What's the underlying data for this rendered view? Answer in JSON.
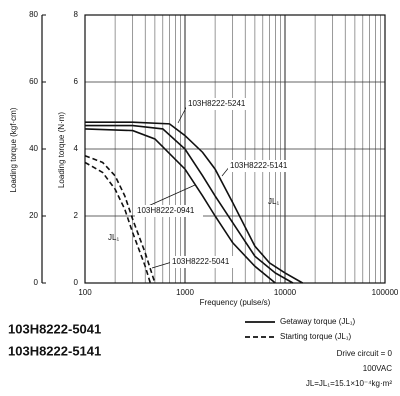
{
  "chart_data": {
    "type": "line",
    "titles": [
      "103H8222-5041",
      "103H8222-5141"
    ],
    "xlabel": "Frequency (pulse/s)",
    "ylabel": "Loading torque (N·m)",
    "y2label": "Loading torque (kgf·cm)",
    "xscale": "log",
    "xlim": [
      100,
      100000
    ],
    "xticks": [
      100,
      1000,
      10000,
      100000
    ],
    "xminorticks": [
      200,
      300,
      400,
      500,
      600,
      700,
      800,
      900,
      2000,
      3000,
      4000,
      5000,
      6000,
      7000,
      8000,
      9000,
      20000,
      30000,
      40000,
      50000,
      60000,
      70000,
      80000,
      90000
    ],
    "ylim": [
      0,
      8
    ],
    "yticks": [
      0,
      2,
      4,
      6,
      8
    ],
    "y2lim": [
      0,
      80
    ],
    "y2ticks": [
      0,
      20,
      40,
      60,
      80
    ],
    "grid": true,
    "color": "#111111",
    "series": [
      {
        "name": "103H8222-5241",
        "dashed": false,
        "x": [
          100,
          300,
          700,
          1000,
          1500,
          2000,
          3000,
          5000,
          7000,
          10000,
          15000
        ],
        "values": [
          4.8,
          4.8,
          4.75,
          4.4,
          3.9,
          3.4,
          2.4,
          1.1,
          0.6,
          0.3,
          0
        ]
      },
      {
        "name": "103H8222-5141",
        "dashed": false,
        "x": [
          100,
          300,
          600,
          1000,
          1500,
          2000,
          3000,
          5000,
          8000,
          12000
        ],
        "values": [
          4.7,
          4.7,
          4.6,
          4.0,
          3.2,
          2.6,
          1.8,
          0.8,
          0.3,
          0
        ]
      },
      {
        "name": "103H8222-0941",
        "dashed": false,
        "x": [
          100,
          300,
          500,
          1000,
          1500,
          2000,
          3000,
          5000,
          8000
        ],
        "values": [
          4.6,
          4.55,
          4.3,
          3.4,
          2.6,
          2.0,
          1.2,
          0.5,
          0
        ]
      },
      {
        "name": "103H8222-5041",
        "dashed": true,
        "x": [
          100,
          150,
          200,
          250,
          300,
          400,
          500
        ],
        "values": [
          3.8,
          3.6,
          3.2,
          2.6,
          1.9,
          0.9,
          0
        ]
      },
      {
        "dashed": true,
        "x": [
          100,
          150,
          200,
          250,
          300,
          400,
          450
        ],
        "values": [
          3.6,
          3.3,
          2.8,
          2.2,
          1.5,
          0.5,
          0
        ]
      }
    ],
    "annotations": [
      "JL₁",
      "JL₁"
    ],
    "legend": [
      {
        "label": "Getaway torque (JL₁)",
        "dashed": false
      },
      {
        "label": "Starting torque (JL₁)",
        "dashed": true
      }
    ],
    "notes": [
      "Drive circuit = 0",
      "100VAC",
      "JL=JL₁=15.1×10⁻⁴kg·m²"
    ]
  }
}
